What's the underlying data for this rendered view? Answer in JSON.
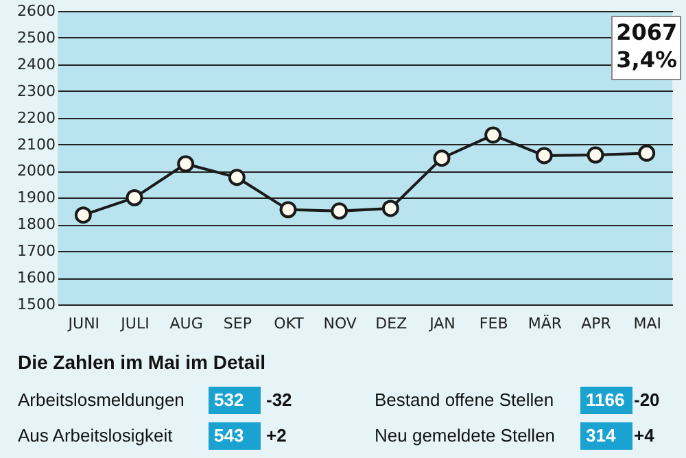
{
  "chart_data": {
    "type": "line",
    "categories": [
      "JUNI",
      "JULI",
      "AUG",
      "SEP",
      "OKT",
      "NOV",
      "DEZ",
      "JAN",
      "FEB",
      "MÄR",
      "APR",
      "MAI"
    ],
    "series": [
      {
        "color": "#1a1a1a",
        "values": [
          1835,
          1900,
          2027,
          1976,
          1855,
          1850,
          1860,
          2048,
          2135,
          2058,
          2060,
          2067
        ]
      }
    ],
    "ylim": [
      1500,
      2600
    ],
    "yticks": [
      1500,
      1600,
      1700,
      1800,
      1900,
      2000,
      2100,
      2200,
      2300,
      2400,
      2500,
      2600
    ],
    "grid": "y",
    "marker": "circle",
    "line_style": "solid",
    "annotations": [
      "2067",
      "3,4%",
      "Die Zahlen im Mai im Detail",
      "Arbeitslosmeldungen",
      "532",
      "-32",
      "Bestand offene Stellen",
      "1166",
      "-20",
      "Aus Arbeitslosigkeit",
      "543",
      "+2",
      "Neu gemeldete Stellen",
      "314",
      "+4"
    ]
  }
}
